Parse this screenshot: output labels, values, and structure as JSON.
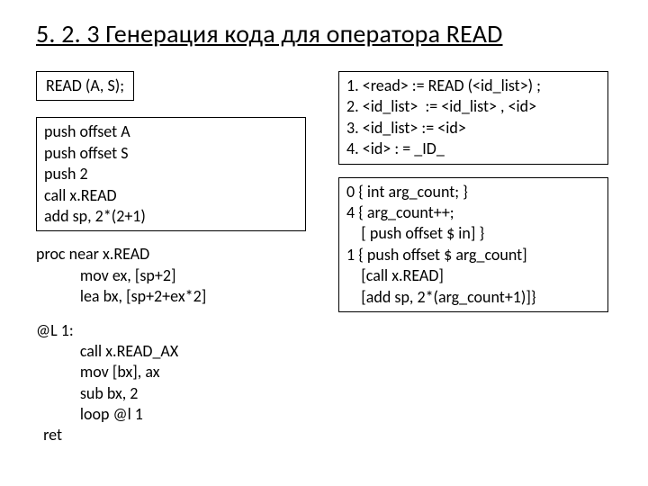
{
  "title": "5. 2. 3 Генерация кода для оператора READ",
  "left": {
    "readStmt": "READ (A, S);",
    "codeBlock1": "push offset A\npush offset S\npush 2\ncall x.READ\nadd sp, 2*(2+1)",
    "procBlock": "proc near x.READ\n            mov ex, [sp+2]\n            lea bx, [sp+2+ex*2]",
    "loopBlock": "@L 1:\n            call x.READ_AX\n            mov [bx], ax\n            sub bx, 2\n            loop @l 1\n  ret"
  },
  "right": {
    "grammar": "1. <read> := READ (<id_list>) ;\n2. <id_list>  := <id_list> , <id>\n3. <id_list> := <id>\n4. <id> : = _ID_",
    "semantics": "0 { int arg_count; }\n4 { arg_count++;\n    [ push offset $ in] }\n1 { push offset $ arg_count]\n    [call x.READ]\n    [add sp, 2*(arg_count+1)]}"
  },
  "style": {
    "page_bg": "#ffffff",
    "text_color": "#000000",
    "border_color": "#000000",
    "title_fontsize": 28,
    "body_fontsize": 18,
    "font_family": "Calibri"
  }
}
